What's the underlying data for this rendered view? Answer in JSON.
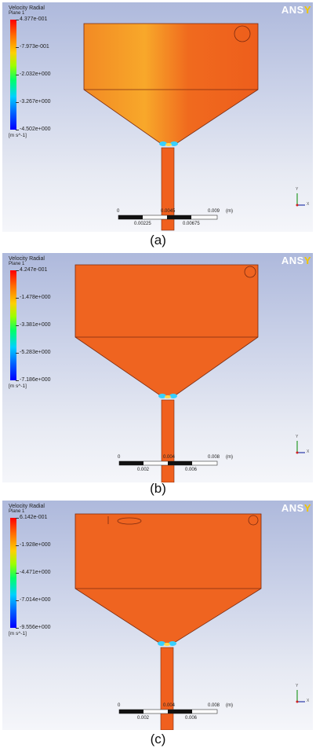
{
  "brand": {
    "main": "ANS",
    "suffix": "Y"
  },
  "panels": [
    {
      "legend": {
        "title": "Velocity Radial",
        "plane": "Plane 1",
        "ticks": [
          "4.377e-001",
          "-7.973e-001",
          "-2.032e+000",
          "-3.267e+000",
          "-4.502e+000"
        ],
        "units": "[m s^-1]"
      },
      "scale_bar": {
        "top_labels": [
          "0",
          "0.0045",
          "0.009",
          "(m)"
        ],
        "bottom_labels": [
          "0.00225",
          "0.00675"
        ]
      },
      "caption": "(a)"
    },
    {
      "legend": {
        "title": "Velocity Radial",
        "plane": "Plane 1",
        "ticks": [
          "4.247e-001",
          "-1.478e+000",
          "-3.381e+000",
          "-5.283e+000",
          "-7.186e+000"
        ],
        "units": "[m s^-1]"
      },
      "scale_bar": {
        "top_labels": [
          "0",
          "0.004",
          "0.008",
          "(m)"
        ],
        "bottom_labels": [
          "0.002",
          "0.006"
        ]
      },
      "caption": "(b)"
    },
    {
      "legend": {
        "title": "Velocity Radial",
        "plane": "Plane 1",
        "ticks": [
          "6.142e-001",
          "-1.928e+000",
          "-4.471e+000",
          "-7.014e+000",
          "-9.556e+000"
        ],
        "units": "[m s^-1]"
      },
      "scale_bar": {
        "top_labels": [
          "0",
          "0.004",
          "0.008",
          "(m)"
        ],
        "bottom_labels": [
          "0.002",
          "0.006"
        ]
      },
      "caption": "(c)"
    }
  ],
  "axis_triad": {
    "y_label": "Y",
    "x_label": "X"
  },
  "colors": {
    "field": "#f0601e",
    "field_light": "#f7902a",
    "outline": "#7a2a10"
  }
}
